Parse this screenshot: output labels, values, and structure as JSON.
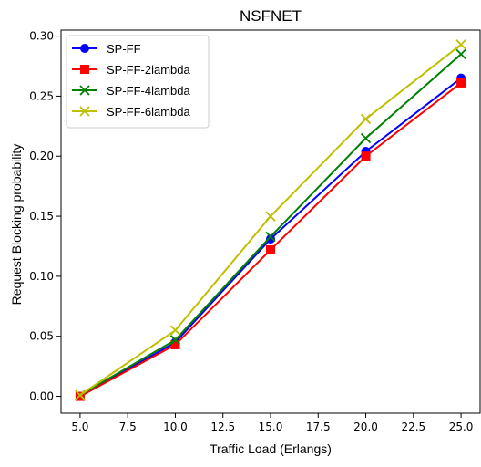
{
  "chart_data": {
    "type": "line",
    "title": "NSFNET",
    "xlabel": "Traffic Load (Erlangs)",
    "ylabel": "Request Blocking probability",
    "x": [
      5.0,
      10.0,
      15.0,
      20.0,
      25.0
    ],
    "xlim": [
      4.0,
      26.0
    ],
    "ylim": [
      -0.014,
      0.305
    ],
    "xticks": [
      "5.0",
      "7.5",
      "10.0",
      "12.5",
      "15.0",
      "17.5",
      "20.0",
      "22.5",
      "25.0"
    ],
    "yticks": [
      "0.00",
      "0.05",
      "0.10",
      "0.15",
      "0.20",
      "0.25",
      "0.30"
    ],
    "grid": false,
    "legend_position": "top-left",
    "series": [
      {
        "name": "SP-FF",
        "color": "#0000ff",
        "marker": "circle",
        "values": [
          0.0,
          0.045,
          0.131,
          0.204,
          0.265
        ]
      },
      {
        "name": "SP-FF-2lambda",
        "color": "#ff0000",
        "marker": "square",
        "values": [
          0.0,
          0.043,
          0.122,
          0.2,
          0.261
        ]
      },
      {
        "name": "SP-FF-4lambda",
        "color": "#008000",
        "marker": "x",
        "values": [
          0.001,
          0.047,
          0.133,
          0.215,
          0.285
        ]
      },
      {
        "name": "SP-FF-6lambda",
        "color": "#bfbf00",
        "marker": "x",
        "values": [
          0.001,
          0.055,
          0.15,
          0.231,
          0.293
        ]
      }
    ]
  }
}
